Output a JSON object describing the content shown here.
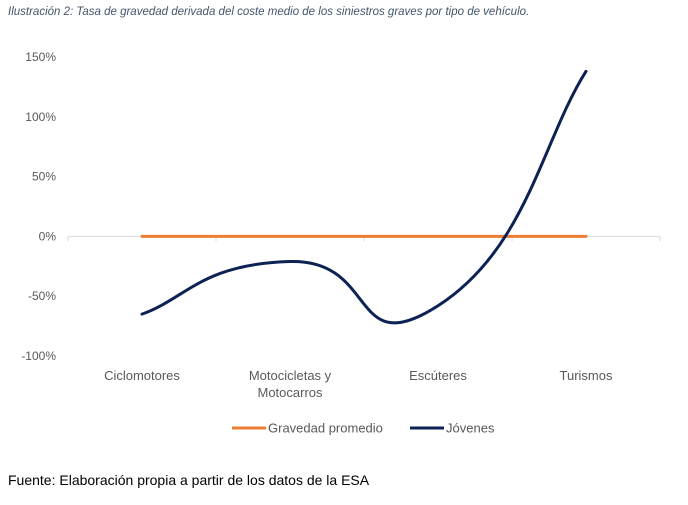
{
  "caption": "Ilustración 2: Tasa de gravedad derivada del coste medio de los siniestros graves por tipo de vehículo.",
  "source": "Fuente: Elaboración propia a partir de los datos de la ESA",
  "colors": {
    "promedio": "#ed7d31",
    "jovenes": "#0d2254",
    "axis": "#d9d9d9",
    "text": "#595959"
  },
  "chart_data": {
    "type": "line",
    "categories": [
      [
        "Ciclomotores"
      ],
      [
        "Motocicletas y",
        "Motocarros"
      ],
      [
        "Escúteres"
      ],
      [
        "Turismos"
      ]
    ],
    "y_ticks": [
      "150%",
      "100%",
      "50%",
      "0%",
      "-50%",
      "-100%"
    ],
    "ylim": [
      -100,
      150
    ],
    "ystep": 50,
    "grid": false,
    "legend_position": "bottom",
    "series": [
      {
        "name": "Gravedad promedio",
        "values": [
          0,
          0,
          0,
          0
        ],
        "color": "#ed7d31"
      },
      {
        "name": "Jóvenes",
        "values": [
          -65,
          -21,
          -58,
          138
        ],
        "color": "#0d2254"
      }
    ]
  }
}
